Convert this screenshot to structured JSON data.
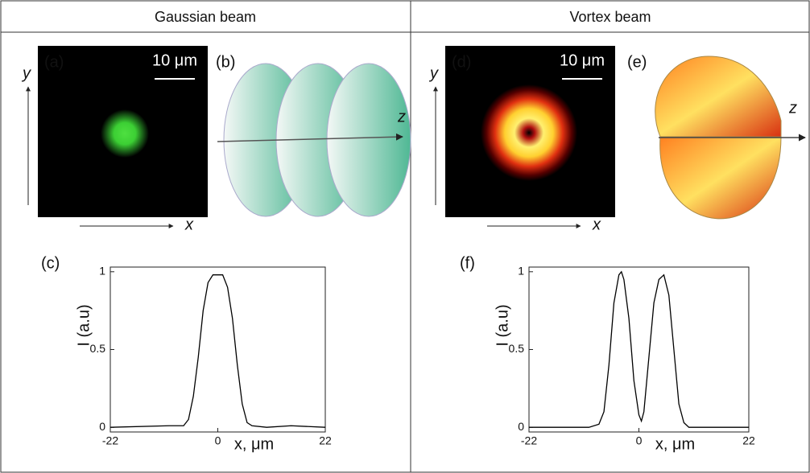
{
  "chart_data": [
    {
      "type": "line",
      "title": "Gaussian beam",
      "panel_label": "(c)",
      "x_label": "x, μm",
      "y_label": "I (a.u)",
      "x": [
        -22,
        -10,
        -7,
        -6,
        -5,
        -4,
        -3,
        -2,
        -1,
        0,
        1,
        2,
        3,
        4,
        5,
        6,
        7,
        10,
        15,
        22
      ],
      "series": [
        {
          "color": "#000000",
          "values": [
            0,
            0.01,
            0.01,
            0.05,
            0.2,
            0.45,
            0.75,
            0.93,
            0.98,
            0.98,
            0.98,
            0.9,
            0.7,
            0.4,
            0.15,
            0.03,
            0.01,
            0,
            0.01,
            0
          ]
        }
      ],
      "xlim": [
        -22,
        22
      ],
      "xticks": [
        -22,
        0,
        22
      ],
      "ylim": [
        -0.03,
        1.03
      ],
      "yticks": [
        0,
        0.5,
        1
      ],
      "image_panel": {
        "label": "(a)",
        "scale_bar": "10 μm",
        "x_axis": "x",
        "y_axis": "y"
      },
      "diagram_panel": {
        "label": "(b)",
        "axis": "z"
      }
    },
    {
      "type": "line",
      "title": "Vortex beam",
      "panel_label": "(f)",
      "x_label": "x, μm",
      "y_label": "I (a.u)",
      "x": [
        -22,
        -10,
        -8,
        -7,
        -6,
        -5,
        -4,
        -3.5,
        -3,
        -2,
        -1,
        0,
        0.5,
        1,
        2,
        3,
        4,
        5,
        6,
        7,
        8,
        9,
        10,
        22
      ],
      "series": [
        {
          "color": "#000000",
          "values": [
            0,
            0,
            0.02,
            0.1,
            0.4,
            0.8,
            0.98,
            1,
            0.95,
            0.7,
            0.3,
            0.08,
            0.04,
            0.1,
            0.45,
            0.8,
            0.95,
            0.98,
            0.85,
            0.5,
            0.15,
            0.03,
            0,
            0
          ]
        }
      ],
      "xlim": [
        -22,
        22
      ],
      "xticks": [
        -22,
        0,
        22
      ],
      "ylim": [
        -0.03,
        1.03
      ],
      "yticks": [
        0,
        0.5,
        1
      ],
      "image_panel": {
        "label": "(d)",
        "scale_bar": "10 μm",
        "x_axis": "x",
        "y_axis": "y"
      },
      "diagram_panel": {
        "label": "(e)",
        "axis": "z"
      }
    }
  ]
}
